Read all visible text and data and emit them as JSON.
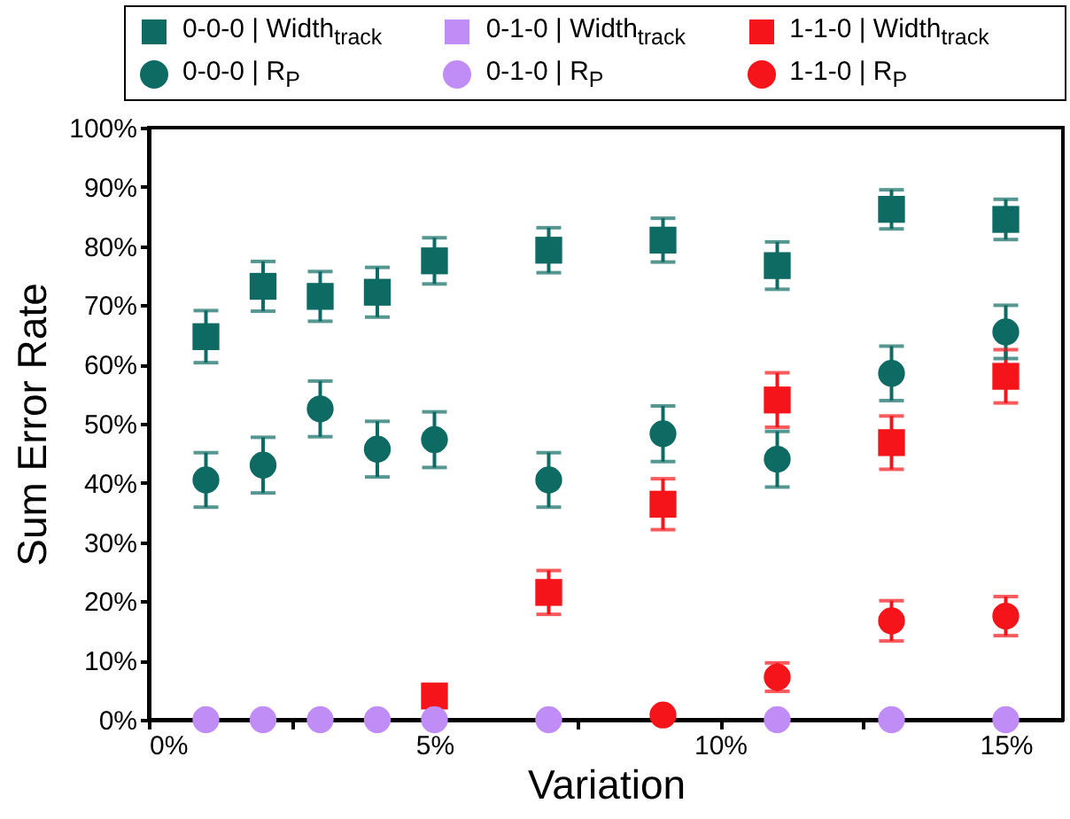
{
  "chart_data": {
    "type": "scatter",
    "xlabel": "Variation",
    "ylabel": "Sum Error Rate",
    "x": [
      1,
      2,
      3,
      4,
      5,
      7,
      9,
      11,
      13,
      15
    ],
    "xlim": [
      0,
      16
    ],
    "xticks": [
      {
        "value": 0,
        "label": "0%"
      },
      {
        "value": 2.5,
        "label": null
      },
      {
        "value": 5,
        "label": "5%"
      },
      {
        "value": 7.5,
        "label": null
      },
      {
        "value": 10,
        "label": "10%"
      },
      {
        "value": 12.5,
        "label": null
      },
      {
        "value": 15,
        "label": "15%"
      }
    ],
    "ylim": [
      0,
      100
    ],
    "yticks": [
      {
        "value": 0,
        "label": "0%"
      },
      {
        "value": 10,
        "label": "10%"
      },
      {
        "value": 20,
        "label": "20%"
      },
      {
        "value": 30,
        "label": "30%"
      },
      {
        "value": 40,
        "label": "40%"
      },
      {
        "value": 50,
        "label": "50%"
      },
      {
        "value": 60,
        "label": "60%"
      },
      {
        "value": 70,
        "label": "70%"
      },
      {
        "value": 80,
        "label": "80%"
      },
      {
        "value": 90,
        "label": "90%"
      },
      {
        "value": 100,
        "label": "100%"
      }
    ],
    "grid": false,
    "legend": "top",
    "series": [
      {
        "name": "0-0-0 | Width$_{track}$",
        "color": "#0e6b64",
        "marker": "square",
        "values": [
          64.7,
          73.2,
          71.5,
          72.2,
          77.5,
          79.3,
          81,
          76.7,
          86.2,
          84.5
        ],
        "errors": [
          4.4,
          4.2,
          4.2,
          4.2,
          3.9,
          3.8,
          3.7,
          4,
          3.3,
          3.4
        ]
      },
      {
        "name": "0-1-0 | Width$_{track}$",
        "color": "#c08cf5",
        "marker": "square",
        "values": [
          null,
          null,
          null,
          null,
          null,
          null,
          null,
          null,
          null,
          null
        ]
      },
      {
        "name": "1-1-0 | Width$_{track}$",
        "color": "#f5141a",
        "marker": "square",
        "values": [
          null,
          null,
          null,
          null,
          4,
          21.5,
          36.4,
          54,
          46.8,
          58
        ],
        "errors": [
          null,
          null,
          null,
          null,
          null,
          3.7,
          4.3,
          4.6,
          4.5,
          4.5
        ]
      },
      {
        "name": "0-0-0 | R$_{P}$",
        "color": "#0e6b64",
        "marker": "circle",
        "values": [
          40.5,
          43,
          52.5,
          45.7,
          47.3,
          40.5,
          48.3,
          44,
          58.5,
          65.5
        ],
        "errors": [
          4.6,
          4.7,
          4.7,
          4.7,
          4.7,
          4.6,
          4.7,
          4.7,
          4.6,
          4.5
        ]
      },
      {
        "name": "0-1-0 | R$_{P}$",
        "color": "#c08cf5",
        "marker": "circle",
        "values": [
          0,
          0,
          0,
          0,
          0,
          0,
          null,
          0,
          0,
          0
        ]
      },
      {
        "name": "1-1-0 | R$_{P}$",
        "color": "#f5141a",
        "marker": "circle",
        "values": [
          null,
          null,
          null,
          null,
          null,
          null,
          0.8,
          7.2,
          16.7,
          17.5
        ],
        "errors": [
          null,
          null,
          null,
          null,
          null,
          null,
          0.5,
          2.4,
          3.4,
          3.3
        ]
      }
    ]
  }
}
